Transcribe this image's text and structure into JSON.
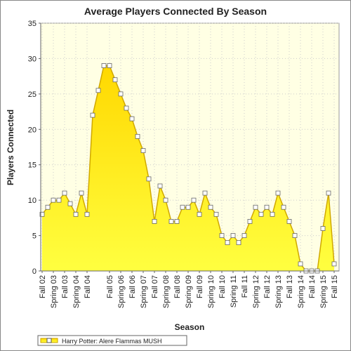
{
  "chart_data": {
    "type": "area",
    "title": "Average Players Connected By Season",
    "x_label": "Season",
    "y_label": "Players Connected",
    "categories": [
      "Fall 02",
      null,
      "Spring 03",
      null,
      "Fall 03",
      null,
      "Spring 04",
      null,
      "Fall 04",
      null,
      null,
      null,
      "Fall 05",
      null,
      "Spring 06",
      null,
      "Fall 06",
      null,
      "Spring 07",
      null,
      "Fall 07",
      null,
      "Spring 08",
      null,
      "Fall 08",
      null,
      "Spring 09",
      null,
      "Fall 09",
      null,
      "Spring 10",
      null,
      "Fall 10",
      null,
      "Spring 11",
      null,
      "Fall 11",
      null,
      "Spring 12",
      null,
      "Fall 12",
      null,
      "Spring 13",
      null,
      "Fall 13",
      null,
      "Spring 14",
      null,
      "Fall 14",
      null,
      "Spring 15",
      null,
      "Fall 15"
    ],
    "series": [
      {
        "name": "Harry Potter: Alere Flammas MUSH",
        "color": "#ffe800",
        "values": [
          8,
          9,
          10,
          10,
          11,
          9.5,
          8,
          11,
          8,
          22,
          25.5,
          29,
          29,
          27,
          25,
          23,
          21.5,
          19,
          17,
          13,
          7,
          12,
          10,
          7,
          7,
          9,
          9,
          10,
          8,
          11,
          9,
          8,
          5,
          4,
          5,
          4,
          5,
          7,
          9,
          8,
          9,
          8,
          11,
          9,
          7,
          5,
          1,
          0,
          0,
          0,
          6,
          11,
          1
        ]
      }
    ],
    "ylim": [
      0,
      35
    ],
    "yticks": [
      0,
      5,
      10,
      15,
      20,
      25,
      30,
      35
    ],
    "grid": true,
    "legend": "bottom-left"
  }
}
